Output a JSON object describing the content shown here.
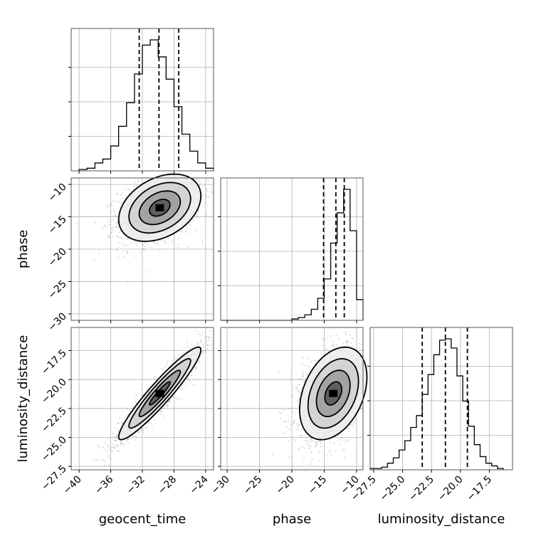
{
  "chart_data": {
    "type": "corner",
    "parameters": [
      "geocent_time",
      "phase",
      "luminosity_distance"
    ],
    "ranges": {
      "geocent_time": [
        -41,
        -23
      ],
      "phase": [
        -31,
        -9
      ],
      "luminosity_distance": [
        -27.8,
        -15.5
      ]
    },
    "ticks": {
      "geocent_time": [
        -40,
        -36,
        -32,
        -28,
        -24
      ],
      "phase": [
        -30,
        -25,
        -20,
        -15,
        -10
      ],
      "luminosity_distance": [
        -27.5,
        -25.0,
        -22.5,
        -20.0,
        -17.5
      ]
    },
    "tick_labels": {
      "geocent_time": [
        "−40",
        "−36",
        "−32",
        "−28",
        "−24"
      ],
      "phase": [
        "−30",
        "−25",
        "−20",
        "−15",
        "−10"
      ],
      "luminosity_distance": [
        "−27.5",
        "−25.0",
        "−22.5",
        "−20.0",
        "−17.5"
      ]
    },
    "marginals": {
      "geocent_time": {
        "bin_edges": [
          -40.0,
          -39.0,
          -38.0,
          -37.0,
          -36.0,
          -35.0,
          -34.0,
          -33.0,
          -32.0,
          -31.0,
          -30.0,
          -29.0,
          -28.0,
          -27.0,
          -26.0,
          -25.0,
          -24.0,
          -23.0
        ],
        "counts": [
          1,
          2,
          6,
          9,
          19,
          34,
          52,
          74,
          96,
          100,
          87,
          70,
          49,
          28,
          15,
          6,
          2
        ],
        "quantiles": [
          -32.4,
          -29.9,
          -27.4
        ]
      },
      "phase": {
        "bin_edges": [
          -31,
          -30,
          -29,
          -28,
          -27,
          -26,
          -25,
          -24,
          -23,
          -22,
          -21,
          -20,
          -19,
          -18,
          -17,
          -16,
          -15,
          -14,
          -13,
          -12,
          -11,
          -10,
          -9
        ],
        "counts": [
          0,
          0,
          0,
          0,
          0,
          0,
          0,
          0,
          0,
          0,
          0,
          1,
          2,
          4,
          8,
          16,
          30,
          56,
          78,
          95,
          65,
          15
        ],
        "quantiles": [
          -15.1,
          -13.2,
          -11.9
        ]
      },
      "luminosity_distance": {
        "bin_edges": [
          -27.8,
          -27.3,
          -26.8,
          -26.3,
          -25.8,
          -25.3,
          -24.8,
          -24.3,
          -23.8,
          -23.3,
          -22.8,
          -22.3,
          -21.8,
          -21.3,
          -20.8,
          -20.3,
          -19.8,
          -19.3,
          -18.8,
          -18.3,
          -17.8,
          -17.3,
          -16.8,
          -16.3
        ],
        "counts": [
          1,
          1,
          2,
          5,
          9,
          15,
          22,
          32,
          41,
          57,
          72,
          87,
          98,
          99,
          92,
          71,
          52,
          33,
          19,
          10,
          5,
          3,
          1
        ],
        "quantiles": [
          -23.3,
          -21.3,
          -19.4
        ]
      }
    },
    "joint": [
      {
        "x": "geocent_time",
        "y": "phase",
        "mean": [
          -29.8,
          -13.6
        ],
        "sd": [
          2.6,
          2.6
        ],
        "corr": 0.35
      },
      {
        "x": "geocent_time",
        "y": "luminosity_distance",
        "mean": [
          -29.8,
          -21.2
        ],
        "sd": [
          2.6,
          2.0
        ],
        "corr": 0.94
      },
      {
        "x": "phase",
        "y": "luminosity_distance",
        "mean": [
          -13.6,
          -21.2
        ],
        "sd": [
          2.6,
          2.0
        ],
        "corr": 0.35
      }
    ],
    "contour_levels": [
      "0.5",
      "1",
      "1.5",
      "2"
    ],
    "grid": true
  }
}
